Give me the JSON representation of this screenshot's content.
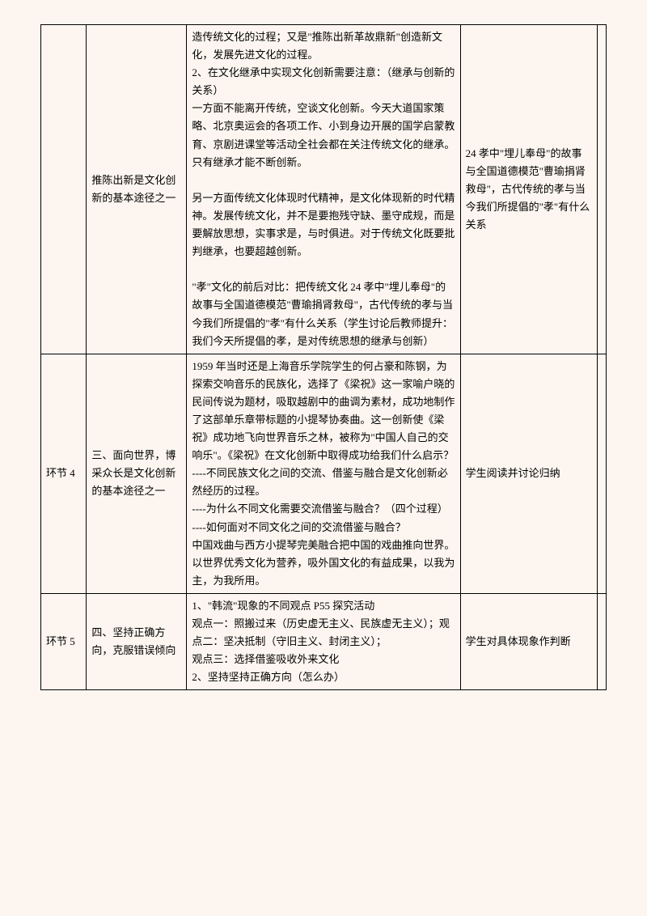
{
  "rows": [
    {
      "c1": "",
      "c2": "推陈出新是文化创新的基本途径之一",
      "c3": "造传统文化的过程；又是\"推陈出新革故鼎新\"创造新文化，发展先进文化的过程。\n2、在文化继承中实现文化创新需要注意：（继承与创新的关系）\n一方面不能离开传统，空谈文化创新。今天大道国家策略、北京奥运会的各项工作、小到身边开展的国学启蒙教育、京剧进课堂等活动全社会都在关注传统文化的继承。只有继承才能不断创新。\n\n另一方面传统文化体现时代精神，是文化体现新的时代精神。发展传统文化，并不是要抱残守缺、墨守成规，而是要解放思想，实事求是，与时俱进。对于传统文化既要批判继承，也要超越创新。\n\n\"孝\"文化的前后对比：把传统文化 24 孝中\"埋儿奉母\"的故事与全国道德模范\"曹瑜捐肾救母\"，古代传统的孝与当今我们所提倡的\"孝\"有什么关系（学生讨论后教师提升：我们今天所提倡的孝，是对传统思想的继承与创新）",
      "c4": "24 孝中\"埋儿奉母\"的故事与全国道德模范\"曹瑜捐肾救母\"，古代传统的孝与当今我们所提倡的\"孝\"有什么关系",
      "c5": ""
    },
    {
      "c1": "环节 4",
      "c2": "三、面向世界，博采众长是文化创新的基本途径之一",
      "c3": "1959 年当时还是上海音乐学院学生的何占豪和陈钢，为探索交响音乐的民族化，选择了《梁祝》这一家喻户晓的民间传说为题材，吸取越剧中的曲调为素材，成功地制作了这部单乐章带标题的小提琴协奏曲。这一创新使《梁祝》成功地飞向世界音乐之林，被称为\"中国人自己的交响乐\"。《梁祝》在文化创新中取得成功给我们什么启示？\n----不同民族文化之间的交流、借鉴与融合是文化创新必然经历的过程。\n----为什么不同文化需要交流借鉴与融合？（四个过程）\n----如何面对不同文化之间的交流借鉴与融合？\n中国戏曲与西方小提琴完美融合把中国的戏曲推向世界。以世界优秀文化为营养，吸外国文化的有益成果，以我为主，为我所用。",
      "c4": "学生阅读并讨论归纳",
      "c5": ""
    },
    {
      "c1": "环节 5",
      "c2": "四、坚持正确方向，克服错误倾向",
      "c3": "1、\"韩流\"现象的不同观点 P55 探究活动\n观点一：照搬过来（历史虚无主义、民族虚无主义）；观点二：坚决抵制（守旧主义、封闭主义）；\n观点三：选择借鉴吸收外来文化\n2、坚持坚持正确方向（怎么办）",
      "c4": "学生对具体现象作判断",
      "c5": ""
    }
  ]
}
